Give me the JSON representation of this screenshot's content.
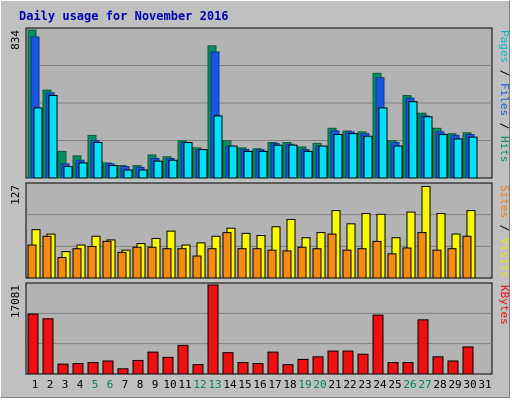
{
  "title": "Daily usage for November 2016",
  "colors": {
    "background": "#c0c0c0",
    "plot": "#b3b3b3",
    "title": "#0000b0",
    "hits_dark": "#145a3c",
    "hits_light": "#009060",
    "files_dark": "#0a3a8a",
    "files_light": "#1a55e0",
    "pages": "#00e0f8",
    "visits": "#f8f800",
    "sites": "#f88a10",
    "kbytes": "#ee1010",
    "weekend_tick": "#008060",
    "weekday_tick": "#000000"
  },
  "chart_data": [
    {
      "type": "bar",
      "panel": "top",
      "scale_label": "834",
      "ylim": [
        0,
        834
      ],
      "axis_label": [
        {
          "text": "Pages",
          "color": "#00c0d0"
        },
        {
          "text": " / ",
          "color": "#000000"
        },
        {
          "text": "Files",
          "color": "#1a55e0"
        },
        {
          "text": " / ",
          "color": "#000000"
        },
        {
          "text": "Hits",
          "color": "#009060"
        }
      ],
      "categories": [
        "1",
        "2",
        "3",
        "4",
        "5",
        "6",
        "7",
        "8",
        "9",
        "10",
        "11",
        "12",
        "13",
        "14",
        "15",
        "16",
        "17",
        "18",
        "19",
        "20",
        "21",
        "22",
        "23",
        "24",
        "25",
        "26",
        "27",
        "28",
        "29",
        "30",
        "31"
      ],
      "series": [
        {
          "name": "Hits",
          "values": [
            834,
            495,
            150,
            125,
            240,
            85,
            70,
            70,
            130,
            120,
            210,
            170,
            745,
            210,
            170,
            165,
            200,
            200,
            175,
            195,
            280,
            265,
            260,
            590,
            210,
            465,
            365,
            280,
            250,
            255,
            0
          ]
        },
        {
          "name": "Files",
          "values": [
            795,
            480,
            80,
            100,
            210,
            80,
            65,
            60,
            110,
            110,
            200,
            160,
            710,
            180,
            160,
            160,
            195,
            190,
            160,
            180,
            265,
            260,
            250,
            565,
            200,
            450,
            350,
            260,
            240,
            245,
            0
          ]
        },
        {
          "name": "Pages",
          "values": [
            395,
            465,
            65,
            85,
            200,
            70,
            45,
            45,
            95,
            100,
            200,
            160,
            350,
            180,
            150,
            150,
            185,
            185,
            150,
            180,
            245,
            250,
            235,
            395,
            180,
            430,
            345,
            245,
            220,
            230,
            0
          ]
        }
      ]
    },
    {
      "type": "bar",
      "panel": "middle",
      "scale_label": "127",
      "ylim": [
        0,
        127
      ],
      "axis_label": [
        {
          "text": "Sites",
          "color": "#f08010"
        },
        {
          "text": " / ",
          "color": "#000000"
        },
        {
          "text": "Visits",
          "color": "#e8e800"
        }
      ],
      "categories": [
        "1",
        "2",
        "3",
        "4",
        "5",
        "6",
        "7",
        "8",
        "9",
        "10",
        "11",
        "12",
        "13",
        "14",
        "15",
        "16",
        "17",
        "18",
        "19",
        "20",
        "21",
        "22",
        "23",
        "24",
        "25",
        "26",
        "27",
        "28",
        "29",
        "30",
        "31"
      ],
      "series": [
        {
          "name": "Visits",
          "values": [
            66,
            60,
            36,
            45,
            57,
            52,
            38,
            47,
            54,
            64,
            45,
            48,
            57,
            68,
            61,
            58,
            70,
            80,
            55,
            62,
            92,
            74,
            88,
            87,
            55,
            90,
            125,
            88,
            60,
            92,
            0
          ]
        },
        {
          "name": "Sites",
          "values": [
            45,
            57,
            28,
            40,
            43,
            50,
            35,
            42,
            42,
            40,
            40,
            30,
            40,
            62,
            40,
            40,
            38,
            37,
            42,
            40,
            60,
            38,
            40,
            50,
            33,
            41,
            62,
            38,
            40,
            57,
            0
          ]
        }
      ]
    },
    {
      "type": "bar",
      "panel": "bottom",
      "scale_label": "17081",
      "ylim": [
        0,
        17081
      ],
      "axis_label": [
        {
          "text": "KBytes",
          "color": "#ee1010"
        }
      ],
      "categories": [
        "1",
        "2",
        "3",
        "4",
        "5",
        "6",
        "7",
        "8",
        "9",
        "10",
        "11",
        "12",
        "13",
        "14",
        "15",
        "16",
        "17",
        "18",
        "19",
        "20",
        "21",
        "22",
        "23",
        "24",
        "25",
        "26",
        "27",
        "28",
        "29",
        "30",
        "31"
      ],
      "series": [
        {
          "name": "KBytes",
          "values": [
            11500,
            10600,
            1900,
            2000,
            2200,
            2500,
            1000,
            2600,
            4200,
            3200,
            5500,
            1800,
            17081,
            4100,
            2200,
            2000,
            4200,
            1800,
            2800,
            3300,
            4400,
            4400,
            3800,
            11300,
            2200,
            2200,
            10400,
            3300,
            2500,
            5200,
            0
          ]
        }
      ]
    }
  ],
  "weekend_days": [
    5,
    6,
    12,
    13,
    19,
    20,
    26,
    27
  ]
}
